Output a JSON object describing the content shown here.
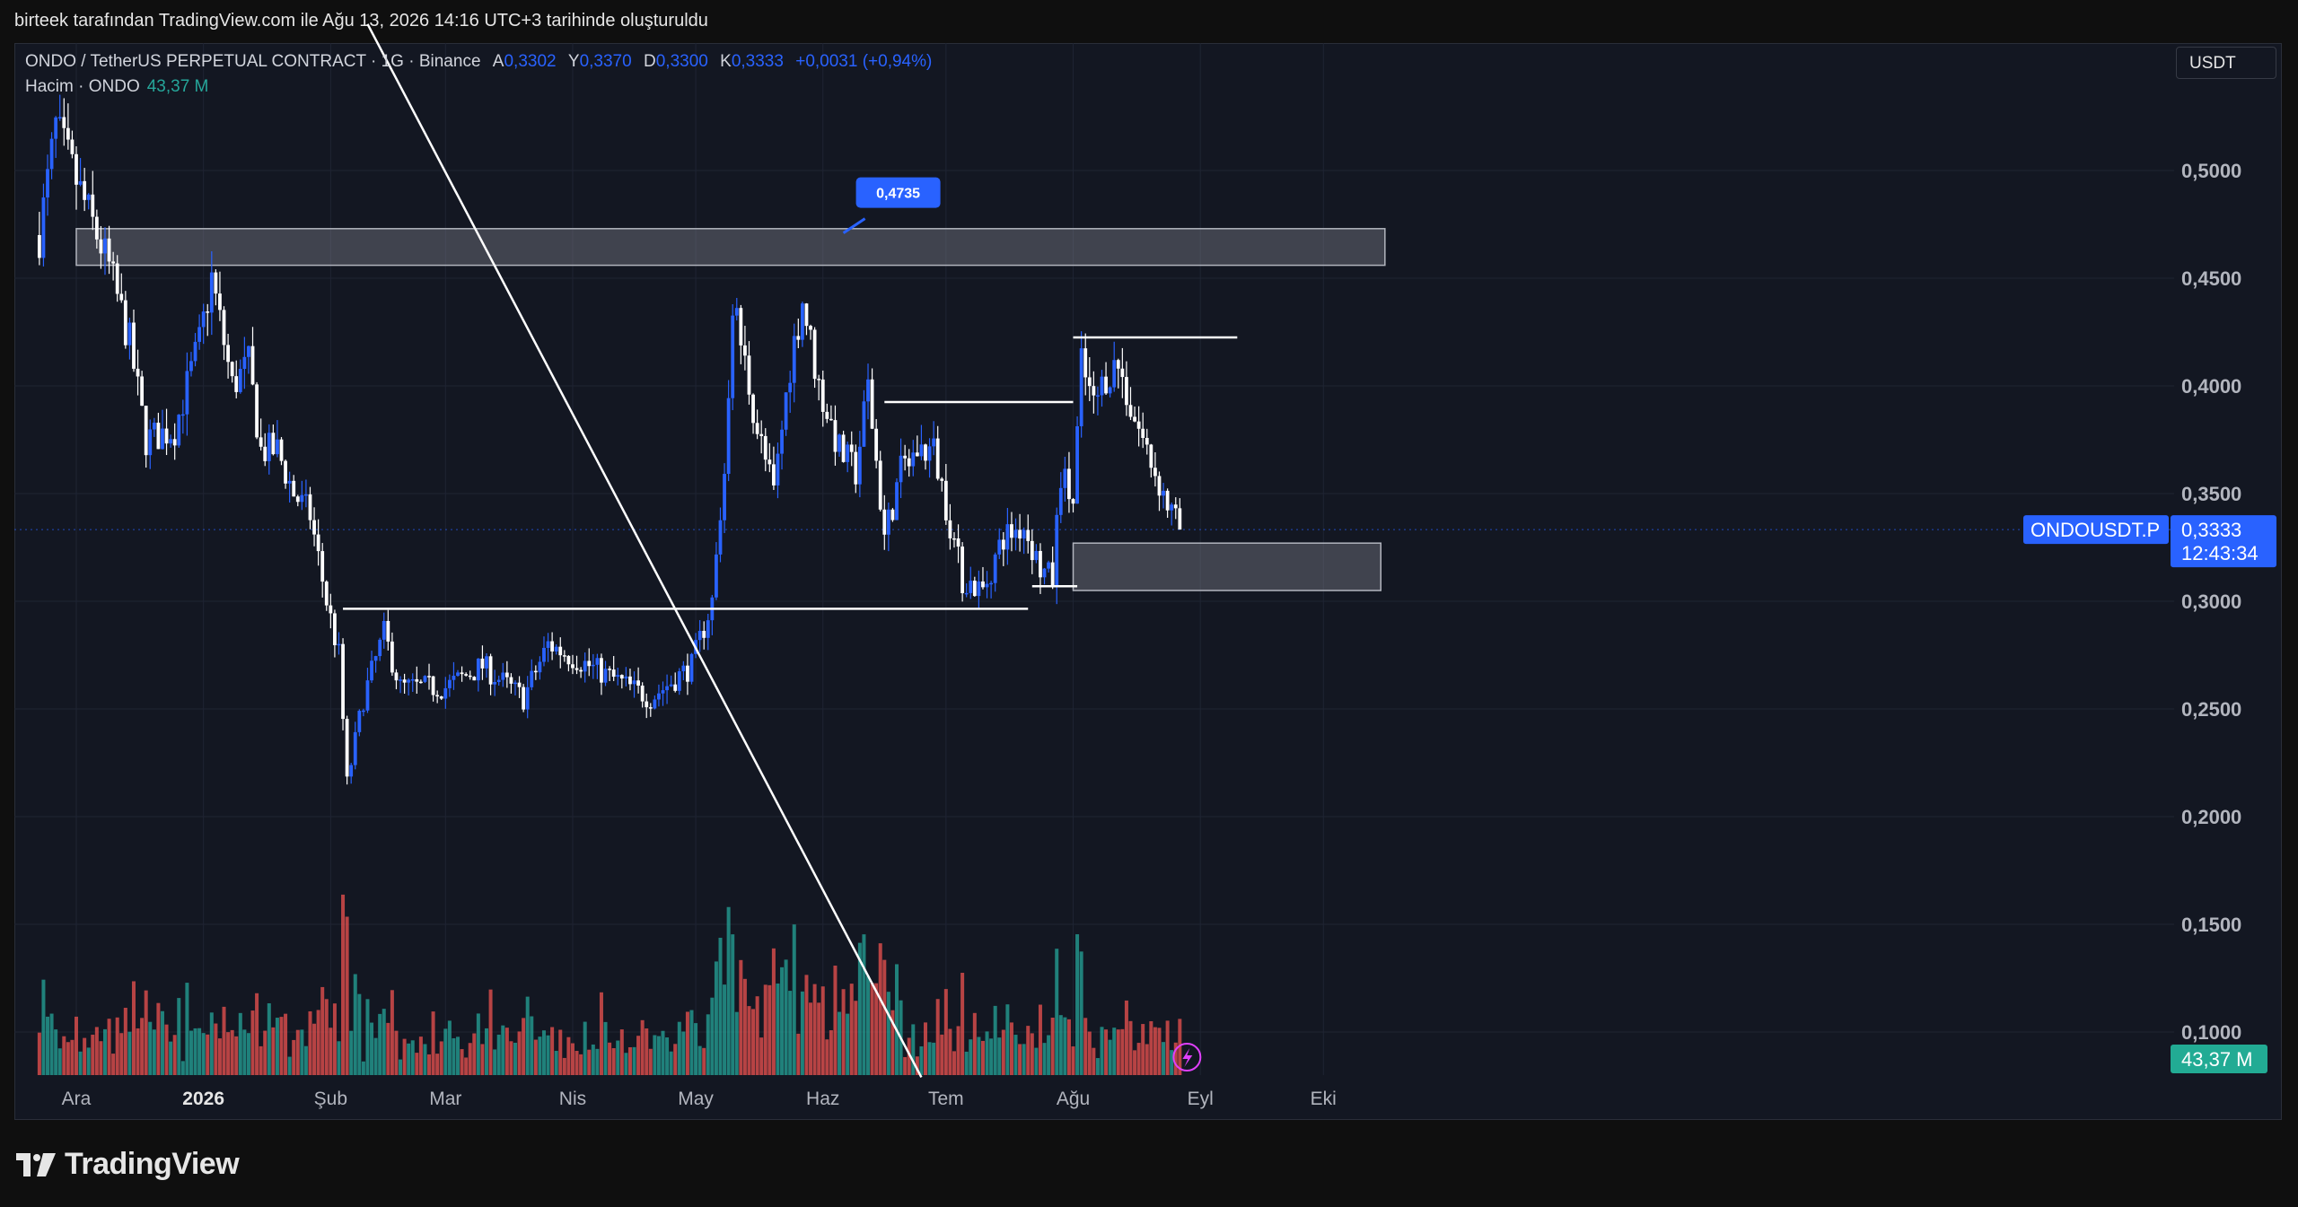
{
  "header": {
    "caption": "birteek tarafından TradingView.com ile Ağu 13, 2026 14:16 UTC+3 tarihinde oluşturuldu"
  },
  "legend": {
    "symbol": "ONDO / TetherUS PERPETUAL CONTRACT · 1G · Binance",
    "open_label": "A",
    "open_value": "0,3302",
    "high_label": "Y",
    "high_value": "0,3370",
    "low_label": "D",
    "low_value": "0,3300",
    "close_label": "K",
    "close_value": "0,3333",
    "change": "+0,0031 (+0,94%)",
    "volume_label": "Hacim · ONDO",
    "volume_value": "43,37 M"
  },
  "currency": "USDT",
  "price_tag": {
    "symbol": "ONDOUSDT.P",
    "price": "0,3333",
    "countdown": "12:43:34"
  },
  "volume_tag": "43,37 M",
  "callout": "0,4735",
  "brand": "TradingView",
  "colors": {
    "background": "#131722",
    "up": "#2962ff",
    "down": "#ffffff",
    "volume_up": "#26a69a",
    "volume_down": "#ef5350",
    "accent": "#2962ff",
    "zone": "#787b86"
  },
  "chart_data": {
    "type": "candlestick",
    "title": "ONDO / TetherUS PERPETUAL CONTRACT · 1G · Binance",
    "timeframe": "1G",
    "x_tick_labels": [
      "Ara",
      "2026",
      "Şub",
      "Mar",
      "Nis",
      "May",
      "Haz",
      "Tem",
      "Ağu",
      "Eyl",
      "Eki"
    ],
    "y_tick_labels": [
      "0,5000",
      "0,4500",
      "0,4000",
      "0,3500",
      "0,3000",
      "0,2500",
      "0,2000",
      "0,1500",
      "0,1000"
    ],
    "y_ticks": [
      0.5,
      0.45,
      0.4,
      0.35,
      0.3,
      0.25,
      0.2,
      0.15,
      0.1
    ],
    "ylim": [
      0.0795,
      0.5665
    ],
    "last_price": 0.3333,
    "grid": true,
    "price_path": [
      [
        "2025-11-22",
        0.47
      ],
      [
        "2025-11-26",
        0.52
      ],
      [
        "2025-11-30",
        0.5
      ],
      [
        "2025-12-06",
        0.47
      ],
      [
        "2025-12-09",
        0.455
      ],
      [
        "2025-12-14",
        0.42
      ],
      [
        "2025-12-18",
        0.375
      ],
      [
        "2025-12-25",
        0.38
      ],
      [
        "2025-12-31",
        0.42
      ],
      [
        "2026-01-03",
        0.45
      ],
      [
        "2026-01-08",
        0.4
      ],
      [
        "2026-01-12",
        0.41
      ],
      [
        "2026-01-15",
        0.37
      ],
      [
        "2026-01-19",
        0.37
      ],
      [
        "2026-01-23",
        0.35
      ],
      [
        "2026-01-27",
        0.34
      ],
      [
        "2026-01-31",
        0.3
      ],
      [
        "2026-02-03",
        0.275
      ],
      [
        "2026-02-05",
        0.215
      ],
      [
        "2026-02-09",
        0.255
      ],
      [
        "2026-02-14",
        0.285
      ],
      [
        "2026-02-18",
        0.26
      ],
      [
        "2026-03-01",
        0.26
      ],
      [
        "2026-03-10",
        0.27
      ],
      [
        "2026-03-20",
        0.255
      ],
      [
        "2026-03-26",
        0.28
      ],
      [
        "2026-04-10",
        0.265
      ],
      [
        "2026-04-20",
        0.255
      ],
      [
        "2026-04-30",
        0.27
      ],
      [
        "2026-05-05",
        0.3
      ],
      [
        "2026-05-08",
        0.36
      ],
      [
        "2026-05-10",
        0.44
      ],
      [
        "2026-05-13",
        0.41
      ],
      [
        "2026-05-16",
        0.38
      ],
      [
        "2026-05-20",
        0.35
      ],
      [
        "2026-05-24",
        0.41
      ],
      [
        "2026-05-27",
        0.44
      ],
      [
        "2026-05-31",
        0.4
      ],
      [
        "2026-06-05",
        0.37
      ],
      [
        "2026-06-09",
        0.36
      ],
      [
        "2026-06-12",
        0.4
      ],
      [
        "2026-06-16",
        0.33
      ],
      [
        "2026-06-20",
        0.36
      ],
      [
        "2026-06-24",
        0.37
      ],
      [
        "2026-06-28",
        0.37
      ],
      [
        "2026-07-01",
        0.345
      ],
      [
        "2026-07-05",
        0.31
      ],
      [
        "2026-07-10",
        0.305
      ],
      [
        "2026-07-15",
        0.33
      ],
      [
        "2026-07-20",
        0.335
      ],
      [
        "2026-07-24",
        0.315
      ],
      [
        "2026-07-27",
        0.31
      ],
      [
        "2026-07-29",
        0.36
      ],
      [
        "2026-08-01",
        0.345
      ],
      [
        "2026-08-03",
        0.41
      ],
      [
        "2026-08-06",
        0.39
      ],
      [
        "2026-08-09",
        0.405
      ],
      [
        "2026-08-12",
        0.41
      ],
      [
        "2026-08-15",
        0.39
      ],
      [
        "2026-08-19",
        0.37
      ],
      [
        "2026-08-24",
        0.345
      ],
      [
        "2026-08-27",
        0.333
      ]
    ],
    "annotations": {
      "resistance_zone": {
        "from": "2025-12-01",
        "to": "2026-10-16",
        "low": 0.456,
        "high": 0.473
      },
      "support_zone": {
        "from": "2026-08-01",
        "to": "2026-10-15",
        "low": 0.305,
        "high": 0.327
      },
      "horizontal_lines": [
        {
          "from": "2026-02-04",
          "to": "2026-07-21",
          "price": 0.2965
        },
        {
          "from": "2026-06-16",
          "to": "2026-08-01",
          "price": 0.3925
        },
        {
          "from": "2026-08-01",
          "to": "2026-09-10",
          "price": 0.4225
        },
        {
          "from": "2026-07-22",
          "to": "2026-08-02",
          "price": 0.307
        }
      ],
      "trend_line": {
        "from": [
          "2026-02-10",
          0.568
        ],
        "to": [
          "2026-06-25",
          0.079
        ]
      },
      "callout": {
        "date": "2026-06-06",
        "price": 0.4735
      }
    }
  }
}
